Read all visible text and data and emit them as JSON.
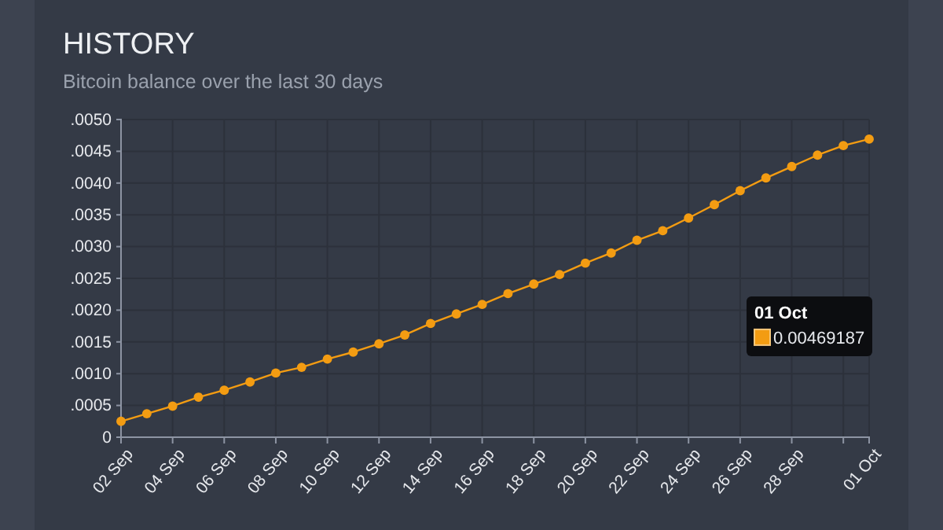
{
  "chart_data": {
    "type": "line",
    "title": "HISTORY",
    "subtitle": "Bitcoin balance over the last 30 days",
    "x": [
      "--09-02",
      "--09-03",
      "--09-04",
      "--09-05",
      "--09-06",
      "--09-07",
      "--09-08",
      "--09-09",
      "--09-10",
      "--09-11",
      "--09-12",
      "--09-13",
      "--09-14",
      "--09-15",
      "--09-16",
      "--09-17",
      "--09-18",
      "--09-19",
      "--09-20",
      "--09-21",
      "--09-22",
      "--09-23",
      "--09-24",
      "--09-25",
      "--09-26",
      "--09-27",
      "--09-28",
      "--09-29",
      "--09-30",
      "--10-01"
    ],
    "series": [
      {
        "color": "#f39c12",
        "values": [
          0.00025,
          0.00037,
          0.00049,
          0.00063,
          0.00074,
          0.00087,
          0.00101,
          0.0011,
          0.00123,
          0.00134,
          0.00147,
          0.00161,
          0.00179,
          0.00194,
          0.00209,
          0.00226,
          0.00241,
          0.00256,
          0.00274,
          0.0029,
          0.0031,
          0.00325,
          0.00345,
          0.00366,
          0.00388,
          0.00408,
          0.00426,
          0.00444,
          0.00459,
          0.00469187
        ]
      }
    ],
    "xlim": [
      "--09-02",
      "--10-01"
    ],
    "xticks": [
      {
        "value": "--09-02",
        "label": "02 Sep"
      },
      {
        "value": "--09-04",
        "label": "04 Sep"
      },
      {
        "value": "--09-06",
        "label": "06 Sep"
      },
      {
        "value": "--09-08",
        "label": "08 Sep"
      },
      {
        "value": "--09-10",
        "label": "10 Sep"
      },
      {
        "value": "--09-12",
        "label": "12 Sep"
      },
      {
        "value": "--09-14",
        "label": "14 Sep"
      },
      {
        "value": "--09-16",
        "label": "16 Sep"
      },
      {
        "value": "--09-18",
        "label": "18 Sep"
      },
      {
        "value": "--09-20",
        "label": "20 Sep"
      },
      {
        "value": "--09-22",
        "label": "22 Sep"
      },
      {
        "value": "--09-24",
        "label": "24 Sep"
      },
      {
        "value": "--09-26",
        "label": "26 Sep"
      },
      {
        "value": "--09-28",
        "label": "28 Sep"
      },
      {
        "value": "--09-30",
        "label": null
      },
      {
        "value": "--10-01",
        "label": "01 Oct"
      }
    ],
    "ylim": [
      0,
      0.005
    ],
    "yticks": [
      0,
      {
        "value": 0.0005,
        "label": ".0005"
      },
      {
        "value": 0.001,
        "label": ".0010"
      },
      {
        "value": 0.0015,
        "label": ".0015"
      },
      {
        "value": 0.002,
        "label": ".0020"
      },
      {
        "value": 0.0025,
        "label": ".0025"
      },
      {
        "value": 0.003,
        "label": ".0030"
      },
      {
        "value": 0.0035,
        "label": ".0035"
      },
      {
        "value": 0.004,
        "label": ".0040"
      },
      {
        "value": 0.0045,
        "label": ".0045"
      },
      {
        "value": 0.005,
        "label": ".0050"
      }
    ],
    "annotations": [
      "01 Oct",
      "0.00469187"
    ],
    "grid": true,
    "marker": "circle",
    "line_style": "solid"
  }
}
